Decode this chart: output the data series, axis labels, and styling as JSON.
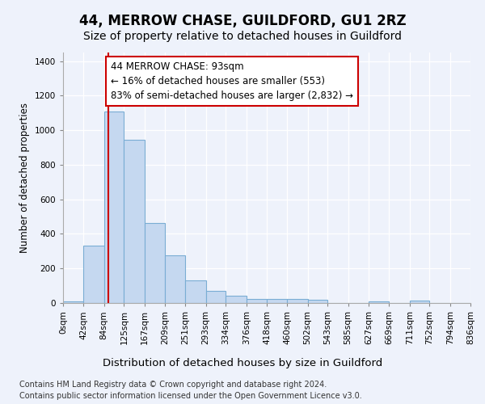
{
  "title": "44, MERROW CHASE, GUILDFORD, GU1 2RZ",
  "subtitle": "Size of property relative to detached houses in Guildford",
  "xlabel": "Distribution of detached houses by size in Guildford",
  "ylabel": "Number of detached properties",
  "footer_line1": "Contains HM Land Registry data © Crown copyright and database right 2024.",
  "footer_line2": "Contains public sector information licensed under the Open Government Licence v3.0.",
  "bar_edges": [
    0,
    42,
    84,
    125,
    167,
    209,
    251,
    293,
    334,
    376,
    418,
    460,
    502,
    543,
    585,
    627,
    669,
    711,
    752,
    794,
    836
  ],
  "bar_heights": [
    10,
    330,
    1110,
    945,
    465,
    278,
    130,
    68,
    40,
    22,
    25,
    25,
    18,
    0,
    0,
    10,
    0,
    13,
    0,
    0
  ],
  "bar_color": "#c5d8f0",
  "bar_edgecolor": "#7aadd4",
  "vline_x": 93,
  "vline_color": "#cc0000",
  "annotation_text": "44 MERROW CHASE: 93sqm\n← 16% of detached houses are smaller (553)\n83% of semi-detached houses are larger (2,832) →",
  "annotation_box_edgecolor": "#cc0000",
  "annotation_box_facecolor": "#ffffff",
  "ylim": [
    0,
    1450
  ],
  "yticks": [
    0,
    200,
    400,
    600,
    800,
    1000,
    1200,
    1400
  ],
  "x_tick_labels": [
    "0sqm",
    "42sqm",
    "84sqm",
    "125sqm",
    "167sqm",
    "209sqm",
    "251sqm",
    "293sqm",
    "334sqm",
    "376sqm",
    "418sqm",
    "460sqm",
    "502sqm",
    "543sqm",
    "585sqm",
    "627sqm",
    "669sqm",
    "711sqm",
    "752sqm",
    "794sqm",
    "836sqm"
  ],
  "title_fontsize": 12,
  "subtitle_fontsize": 10,
  "xlabel_fontsize": 9.5,
  "ylabel_fontsize": 8.5,
  "tick_fontsize": 7.5,
  "annotation_fontsize": 8.5,
  "footer_fontsize": 7,
  "bg_color": "#eef2fb",
  "plot_bg_color": "#eef2fb",
  "grid_color": "#ffffff"
}
